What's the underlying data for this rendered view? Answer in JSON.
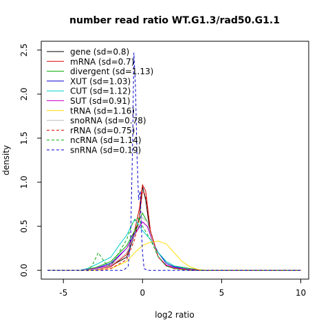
{
  "chart_data": {
    "type": "line",
    "title": "number read ratio WT.G1.3/rad50.G1.1",
    "xlabel": "log2 ratio",
    "ylabel": "density",
    "xlim": [
      -6.4,
      10.5
    ],
    "ylim": [
      -0.1,
      2.6
    ],
    "xticks": [
      -5,
      0,
      5,
      10
    ],
    "yticks": [
      0.0,
      0.5,
      1.0,
      1.5,
      2.0,
      2.5
    ],
    "grid": false,
    "legend_position": "top-left",
    "series": [
      {
        "name": "gene (sd=0.8)",
        "color": "#000000",
        "dash": false,
        "points": [
          [
            -6,
            0
          ],
          [
            -4,
            0
          ],
          [
            -3,
            0.01
          ],
          [
            -2,
            0.05
          ],
          [
            -1,
            0.15
          ],
          [
            -0.5,
            0.4
          ],
          [
            -0.2,
            0.6
          ],
          [
            0,
            0.95
          ],
          [
            0.2,
            0.8
          ],
          [
            0.5,
            0.4
          ],
          [
            1,
            0.15
          ],
          [
            1.5,
            0.06
          ],
          [
            2,
            0.03
          ],
          [
            3,
            0.01
          ],
          [
            4,
            0
          ],
          [
            10,
            0
          ]
        ]
      },
      {
        "name": "mRNA (sd=0.7)",
        "color": "#dd0000",
        "dash": false,
        "points": [
          [
            -6,
            0
          ],
          [
            -4,
            0
          ],
          [
            -3,
            0.01
          ],
          [
            -2,
            0.04
          ],
          [
            -1,
            0.18
          ],
          [
            -0.5,
            0.45
          ],
          [
            -0.2,
            0.7
          ],
          [
            0,
            0.97
          ],
          [
            0.2,
            0.9
          ],
          [
            0.5,
            0.45
          ],
          [
            1,
            0.15
          ],
          [
            1.5,
            0.05
          ],
          [
            2,
            0.02
          ],
          [
            3,
            0.01
          ],
          [
            4,
            0
          ],
          [
            10,
            0
          ]
        ]
      },
      {
        "name": "divergent (sd=1.13)",
        "color": "#00aa00",
        "dash": false,
        "points": [
          [
            -6,
            0
          ],
          [
            -4,
            0
          ],
          [
            -3,
            0.03
          ],
          [
            -2,
            0.1
          ],
          [
            -1,
            0.28
          ],
          [
            -0.5,
            0.45
          ],
          [
            0,
            0.65
          ],
          [
            0.3,
            0.55
          ],
          [
            0.7,
            0.3
          ],
          [
            1,
            0.2
          ],
          [
            1.5,
            0.1
          ],
          [
            2,
            0.05
          ],
          [
            3,
            0.02
          ],
          [
            4,
            0
          ],
          [
            10,
            0
          ]
        ]
      },
      {
        "name": "XUT (sd=1.03)",
        "color": "#0000cc",
        "dash": false,
        "points": [
          [
            -6,
            0
          ],
          [
            -4,
            0
          ],
          [
            -3,
            0.02
          ],
          [
            -2,
            0.08
          ],
          [
            -1,
            0.25
          ],
          [
            -0.5,
            0.42
          ],
          [
            0,
            0.55
          ],
          [
            0.3,
            0.5
          ],
          [
            0.7,
            0.3
          ],
          [
            1,
            0.2
          ],
          [
            1.5,
            0.08
          ],
          [
            2,
            0.04
          ],
          [
            3,
            0.01
          ],
          [
            4,
            0
          ],
          [
            10,
            0
          ]
        ]
      },
      {
        "name": "CUT (sd=1.12)",
        "color": "#00cccc",
        "dash": false,
        "points": [
          [
            -6,
            0
          ],
          [
            -4,
            0
          ],
          [
            -3.5,
            0.02
          ],
          [
            -3,
            0.06
          ],
          [
            -2,
            0.15
          ],
          [
            -1.5,
            0.28
          ],
          [
            -1,
            0.4
          ],
          [
            -0.5,
            0.58
          ],
          [
            0,
            0.45
          ],
          [
            0.5,
            0.35
          ],
          [
            1,
            0.2
          ],
          [
            1.5,
            0.1
          ],
          [
            2,
            0.05
          ],
          [
            3,
            0.01
          ],
          [
            4,
            0
          ],
          [
            10,
            0
          ]
        ]
      },
      {
        "name": "SUT (sd=0.91)",
        "color": "#cc00cc",
        "dash": false,
        "points": [
          [
            -6,
            0
          ],
          [
            -4,
            0
          ],
          [
            -3,
            0.02
          ],
          [
            -2,
            0.06
          ],
          [
            -1,
            0.25
          ],
          [
            -0.5,
            0.4
          ],
          [
            0,
            0.55
          ],
          [
            0.3,
            0.5
          ],
          [
            0.7,
            0.3
          ],
          [
            1,
            0.15
          ],
          [
            1.5,
            0.06
          ],
          [
            2,
            0.03
          ],
          [
            3,
            0.01
          ],
          [
            4,
            0
          ],
          [
            10,
            0
          ]
        ]
      },
      {
        "name": "tRNA (sd=1.16)",
        "color": "#ffdd00",
        "dash": false,
        "points": [
          [
            -6,
            0
          ],
          [
            -3,
            0
          ],
          [
            -2,
            0.02
          ],
          [
            -1,
            0.1
          ],
          [
            -0.5,
            0.2
          ],
          [
            0,
            0.28
          ],
          [
            0.5,
            0.32
          ],
          [
            1,
            0.33
          ],
          [
            1.5,
            0.3
          ],
          [
            2,
            0.2
          ],
          [
            2.5,
            0.1
          ],
          [
            3,
            0.04
          ],
          [
            3.5,
            0.01
          ],
          [
            4,
            0
          ],
          [
            10,
            0
          ]
        ]
      },
      {
        "name": "snoRNA (sd=0.78)",
        "color": "#bbbbbb",
        "dash": false,
        "points": [
          [
            -6,
            0
          ],
          [
            -4,
            0
          ],
          [
            -3,
            0.01
          ],
          [
            -2,
            0.05
          ],
          [
            -1,
            0.2
          ],
          [
            -0.5,
            0.4
          ],
          [
            0,
            0.6
          ],
          [
            0.3,
            0.55
          ],
          [
            0.7,
            0.3
          ],
          [
            1,
            0.15
          ],
          [
            1.5,
            0.05
          ],
          [
            2,
            0.02
          ],
          [
            3,
            0
          ],
          [
            10,
            0
          ]
        ]
      },
      {
        "name": "rRNA (sd=0.75)",
        "color": "#dd0000",
        "dash": true,
        "points": [
          [
            -6,
            0
          ],
          [
            -3,
            0
          ],
          [
            -2,
            0.02
          ],
          [
            -1,
            0.12
          ],
          [
            -0.5,
            0.35
          ],
          [
            -0.2,
            0.6
          ],
          [
            0,
            0.9
          ],
          [
            0.2,
            0.85
          ],
          [
            0.5,
            0.45
          ],
          [
            1,
            0.15
          ],
          [
            1.5,
            0.05
          ],
          [
            2,
            0.02
          ],
          [
            3,
            0
          ],
          [
            10,
            0
          ]
        ]
      },
      {
        "name": "ncRNA (sd=1.14)",
        "color": "#00aa00",
        "dash": true,
        "points": [
          [
            -6,
            0
          ],
          [
            -3.5,
            0
          ],
          [
            -3.2,
            0.05
          ],
          [
            -2.8,
            0.2
          ],
          [
            -2.5,
            0.12
          ],
          [
            -2.2,
            0.05
          ],
          [
            -1.8,
            0.1
          ],
          [
            -1.5,
            0.2
          ],
          [
            -1,
            0.35
          ],
          [
            -0.6,
            0.55
          ],
          [
            -0.3,
            0.6
          ],
          [
            0,
            0.5
          ],
          [
            0.5,
            0.35
          ],
          [
            1,
            0.15
          ],
          [
            1.5,
            0.05
          ],
          [
            2,
            0.02
          ],
          [
            3,
            0
          ],
          [
            10,
            0
          ]
        ]
      },
      {
        "name": "snRNA (sd=0.19)",
        "color": "#0000cc",
        "dash": true,
        "points": [
          [
            -6,
            0
          ],
          [
            -1.2,
            0
          ],
          [
            -0.9,
            0.05
          ],
          [
            -0.75,
            0.4
          ],
          [
            -0.62,
            1.5
          ],
          [
            -0.55,
            2.47
          ],
          [
            -0.45,
            2.1
          ],
          [
            -0.35,
            1.3
          ],
          [
            -0.25,
            0.8
          ],
          [
            -0.15,
            0.9
          ],
          [
            -0.08,
            0.5
          ],
          [
            0,
            0.2
          ],
          [
            0.1,
            0.02
          ],
          [
            0.3,
            0
          ],
          [
            10,
            0
          ]
        ]
      }
    ]
  }
}
